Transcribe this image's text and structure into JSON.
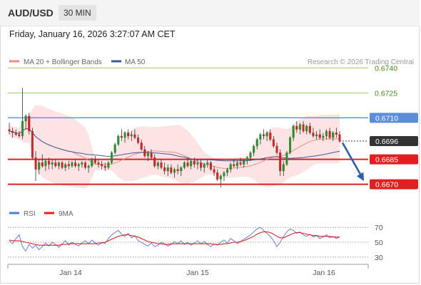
{
  "header": {
    "pair": "AUD/USD",
    "timeframe": "30 MIN"
  },
  "timestamp": "Friday, January 16, 2026 3:27:07 AM CET",
  "source": "Research © 2026 Trading Central",
  "colors": {
    "bull": "#2e8b2e",
    "bear": "#c62828",
    "ma20": "#f08a8a",
    "bollinger_fill": "#fde3e3",
    "ma50": "#3c5a99",
    "resistance": "#9ccc65",
    "pivot": "#5b8dd9",
    "support": "#e02020",
    "rsi": "#5577dd",
    "rsi_ma": "#e02020",
    "arrow": "#2f5fa8",
    "last_price": "#333333"
  },
  "chart_data": [
    {
      "type": "candlestick",
      "title": "",
      "x_ticks": [
        "Jan 14",
        "Jan 15",
        "Jan 16"
      ],
      "ylim": [
        0.666,
        0.675
      ],
      "legend": [
        {
          "name": "MA 20 + Bollinger Bands",
          "color": "#f08a8a"
        },
        {
          "name": "MA 50",
          "color": "#3c5a99"
        }
      ],
      "levels": [
        {
          "value": 0.674,
          "label": "0.6740",
          "role": "resistance"
        },
        {
          "value": 0.6725,
          "label": "0.6725",
          "role": "resistance"
        },
        {
          "value": 0.671,
          "label": "0.6710",
          "role": "pivot"
        },
        {
          "value": 0.6685,
          "label": "0.6685",
          "role": "support"
        },
        {
          "value": 0.667,
          "label": "0.6670",
          "role": "support"
        }
      ],
      "last_price": {
        "value": 0.6696,
        "label": "0.6696"
      },
      "forecast_arrow": {
        "from": 0.6695,
        "to": 0.6672
      },
      "ohlc": [
        [
          0.6703,
          0.6707,
          0.67,
          0.6702
        ],
        [
          0.6702,
          0.6704,
          0.6698,
          0.6701
        ],
        [
          0.6701,
          0.6703,
          0.6699,
          0.67
        ],
        [
          0.67,
          0.6702,
          0.6698,
          0.6699
        ],
        [
          0.6699,
          0.6728,
          0.6697,
          0.6708
        ],
        [
          0.6708,
          0.6712,
          0.6703,
          0.6711
        ],
        [
          0.6711,
          0.6713,
          0.67,
          0.6702
        ],
        [
          0.6702,
          0.6704,
          0.6685,
          0.6686
        ],
        [
          0.6686,
          0.669,
          0.6672,
          0.6679
        ],
        [
          0.6679,
          0.6685,
          0.6676,
          0.6683
        ],
        [
          0.6683,
          0.6688,
          0.668,
          0.6681
        ],
        [
          0.6681,
          0.6685,
          0.6678,
          0.6684
        ],
        [
          0.6684,
          0.6686,
          0.6679,
          0.6682
        ],
        [
          0.6682,
          0.6685,
          0.6679,
          0.6683
        ],
        [
          0.6683,
          0.6685,
          0.668,
          0.6681
        ],
        [
          0.6681,
          0.6684,
          0.6679,
          0.6683
        ],
        [
          0.6683,
          0.6684,
          0.6679,
          0.668
        ],
        [
          0.668,
          0.6683,
          0.6678,
          0.6682
        ],
        [
          0.6682,
          0.6684,
          0.6679,
          0.6681
        ],
        [
          0.6681,
          0.6684,
          0.668,
          0.6683
        ],
        [
          0.6683,
          0.6685,
          0.668,
          0.6681
        ],
        [
          0.6681,
          0.6683,
          0.6678,
          0.6682
        ],
        [
          0.6682,
          0.6684,
          0.668,
          0.6683
        ],
        [
          0.6683,
          0.6684,
          0.6679,
          0.668
        ],
        [
          0.668,
          0.6682,
          0.6677,
          0.6681
        ],
        [
          0.6681,
          0.6686,
          0.668,
          0.6685
        ],
        [
          0.6685,
          0.6687,
          0.6682,
          0.6683
        ],
        [
          0.6683,
          0.6685,
          0.668,
          0.6682
        ],
        [
          0.6682,
          0.6684,
          0.6679,
          0.6681
        ],
        [
          0.6681,
          0.6683,
          0.6678,
          0.668
        ],
        [
          0.668,
          0.6684,
          0.6679,
          0.6683
        ],
        [
          0.6683,
          0.669,
          0.6682,
          0.6689
        ],
        [
          0.6689,
          0.6695,
          0.6688,
          0.6694
        ],
        [
          0.6694,
          0.67,
          0.6693,
          0.6699
        ],
        [
          0.6699,
          0.6703,
          0.6696,
          0.6698
        ],
        [
          0.6698,
          0.6702,
          0.6695,
          0.6701
        ],
        [
          0.6701,
          0.6703,
          0.6697,
          0.6699
        ],
        [
          0.6699,
          0.6702,
          0.6696,
          0.67
        ],
        [
          0.67,
          0.6703,
          0.6697,
          0.6698
        ],
        [
          0.6698,
          0.67,
          0.6694,
          0.6695
        ],
        [
          0.6695,
          0.6697,
          0.669,
          0.6691
        ],
        [
          0.6691,
          0.6693,
          0.6686,
          0.6687
        ],
        [
          0.6687,
          0.669,
          0.6684,
          0.6689
        ],
        [
          0.6689,
          0.6691,
          0.6685,
          0.6686
        ],
        [
          0.6686,
          0.6688,
          0.668,
          0.6681
        ],
        [
          0.6681,
          0.6684,
          0.6679,
          0.6683
        ],
        [
          0.6683,
          0.6685,
          0.6679,
          0.668
        ],
        [
          0.668,
          0.6683,
          0.6676,
          0.6678
        ],
        [
          0.6678,
          0.6682,
          0.6675,
          0.668
        ],
        [
          0.668,
          0.6682,
          0.6676,
          0.6677
        ],
        [
          0.6677,
          0.668,
          0.6674,
          0.6679
        ],
        [
          0.6679,
          0.6682,
          0.6676,
          0.6678
        ],
        [
          0.6678,
          0.6681,
          0.6675,
          0.668
        ],
        [
          0.668,
          0.6684,
          0.6679,
          0.6683
        ],
        [
          0.6683,
          0.6686,
          0.668,
          0.6681
        ],
        [
          0.6681,
          0.6685,
          0.6679,
          0.6684
        ],
        [
          0.6684,
          0.6686,
          0.668,
          0.6682
        ],
        [
          0.6682,
          0.6685,
          0.6679,
          0.6683
        ],
        [
          0.6683,
          0.6685,
          0.6678,
          0.668
        ],
        [
          0.668,
          0.6683,
          0.6677,
          0.6682
        ],
        [
          0.6682,
          0.6685,
          0.668,
          0.6683
        ],
        [
          0.6683,
          0.6684,
          0.6678,
          0.6679
        ],
        [
          0.6679,
          0.6681,
          0.6675,
          0.6677
        ],
        [
          0.6677,
          0.6679,
          0.6672,
          0.6673
        ],
        [
          0.6673,
          0.6676,
          0.6668,
          0.6675
        ],
        [
          0.6675,
          0.6678,
          0.6672,
          0.6677
        ],
        [
          0.6677,
          0.668,
          0.6675,
          0.6679
        ],
        [
          0.6679,
          0.6683,
          0.6677,
          0.6682
        ],
        [
          0.6682,
          0.6685,
          0.668,
          0.6681
        ],
        [
          0.6681,
          0.6684,
          0.6679,
          0.6683
        ],
        [
          0.6683,
          0.6686,
          0.6681,
          0.6682
        ],
        [
          0.6682,
          0.6685,
          0.668,
          0.6684
        ],
        [
          0.6684,
          0.6687,
          0.6682,
          0.6686
        ],
        [
          0.6686,
          0.669,
          0.6684,
          0.6689
        ],
        [
          0.6689,
          0.6694,
          0.6687,
          0.6693
        ],
        [
          0.6693,
          0.6698,
          0.6691,
          0.6697
        ],
        [
          0.6697,
          0.6701,
          0.6694,
          0.67
        ],
        [
          0.67,
          0.6703,
          0.6697,
          0.6699
        ],
        [
          0.6699,
          0.6702,
          0.6696,
          0.6701
        ],
        [
          0.6701,
          0.6703,
          0.6696,
          0.6697
        ],
        [
          0.6697,
          0.6699,
          0.6692,
          0.6693
        ],
        [
          0.6693,
          0.6695,
          0.6688,
          0.6689
        ],
        [
          0.6689,
          0.6691,
          0.6675,
          0.6678
        ],
        [
          0.6678,
          0.6684,
          0.6675,
          0.6682
        ],
        [
          0.6682,
          0.669,
          0.6681,
          0.6689
        ],
        [
          0.6689,
          0.6699,
          0.6688,
          0.6698
        ],
        [
          0.6698,
          0.6706,
          0.6696,
          0.6705
        ],
        [
          0.6705,
          0.6708,
          0.6701,
          0.6703
        ],
        [
          0.6703,
          0.6707,
          0.67,
          0.6706
        ],
        [
          0.6706,
          0.6708,
          0.6701,
          0.6702
        ],
        [
          0.6702,
          0.6706,
          0.67,
          0.6705
        ],
        [
          0.6705,
          0.6707,
          0.67,
          0.6701
        ],
        [
          0.6701,
          0.6704,
          0.6698,
          0.6699
        ],
        [
          0.6699,
          0.6702,
          0.6697,
          0.67
        ],
        [
          0.67,
          0.6703,
          0.6697,
          0.6698
        ],
        [
          0.6698,
          0.6701,
          0.6696,
          0.6699
        ],
        [
          0.6699,
          0.6703,
          0.6697,
          0.6702
        ],
        [
          0.6702,
          0.6704,
          0.6697,
          0.6698
        ],
        [
          0.6698,
          0.6702,
          0.6696,
          0.6701
        ],
        [
          0.6701,
          0.6704,
          0.6698,
          0.67
        ],
        [
          0.67,
          0.6702,
          0.6695,
          0.6696
        ]
      ]
    },
    {
      "type": "line",
      "title": "",
      "legend": [
        {
          "name": "RSI",
          "color": "#5577dd"
        },
        {
          "name": "9MA",
          "color": "#e02020"
        }
      ],
      "ylim": [
        25,
        75
      ],
      "y_ticks": [
        30,
        50,
        70
      ],
      "series": [
        {
          "name": "RSI",
          "values": [
            52,
            48,
            55,
            60,
            44,
            38,
            47,
            42,
            46,
            40,
            44,
            49,
            45,
            50,
            47,
            43,
            48,
            52,
            46,
            50,
            47,
            45,
            49,
            52,
            48,
            53,
            49,
            46,
            50,
            48,
            55,
            60,
            63,
            66,
            61,
            58,
            62,
            56,
            59,
            52,
            50,
            47,
            45,
            49,
            44,
            46,
            50,
            48,
            45,
            47,
            51,
            48,
            52,
            47,
            50,
            46,
            49,
            52,
            48,
            51,
            47,
            44,
            48,
            46,
            50,
            53,
            49,
            55,
            52,
            48,
            51,
            54,
            57,
            60,
            64,
            68,
            70,
            66,
            62,
            58,
            52,
            44,
            50,
            58,
            64,
            68,
            66,
            62,
            64,
            60,
            58,
            61,
            57,
            59,
            55,
            57,
            60,
            56,
            58,
            55,
            57
          ]
        },
        {
          "name": "9MA",
          "values": [
            53,
            52,
            52,
            52,
            51,
            50,
            49,
            48,
            47,
            46,
            46,
            46,
            46,
            46,
            46,
            46,
            47,
            47,
            48,
            48,
            48,
            48,
            48,
            48,
            48,
            48,
            48,
            49,
            49,
            50,
            52,
            54,
            56,
            58,
            59,
            60,
            60,
            59,
            58,
            57,
            55,
            53,
            51,
            50,
            49,
            48,
            48,
            47,
            47,
            48,
            48,
            48,
            48,
            48,
            48,
            48,
            48,
            48,
            48,
            48,
            48,
            48,
            47,
            47,
            47,
            48,
            48,
            49,
            50,
            50,
            51,
            52,
            54,
            56,
            58,
            61,
            63,
            64,
            64,
            63,
            61,
            58,
            56,
            56,
            58,
            60,
            62,
            63,
            63,
            62,
            61,
            60,
            59,
            59,
            58,
            58,
            58,
            58,
            57,
            57,
            57
          ]
        }
      ]
    }
  ]
}
